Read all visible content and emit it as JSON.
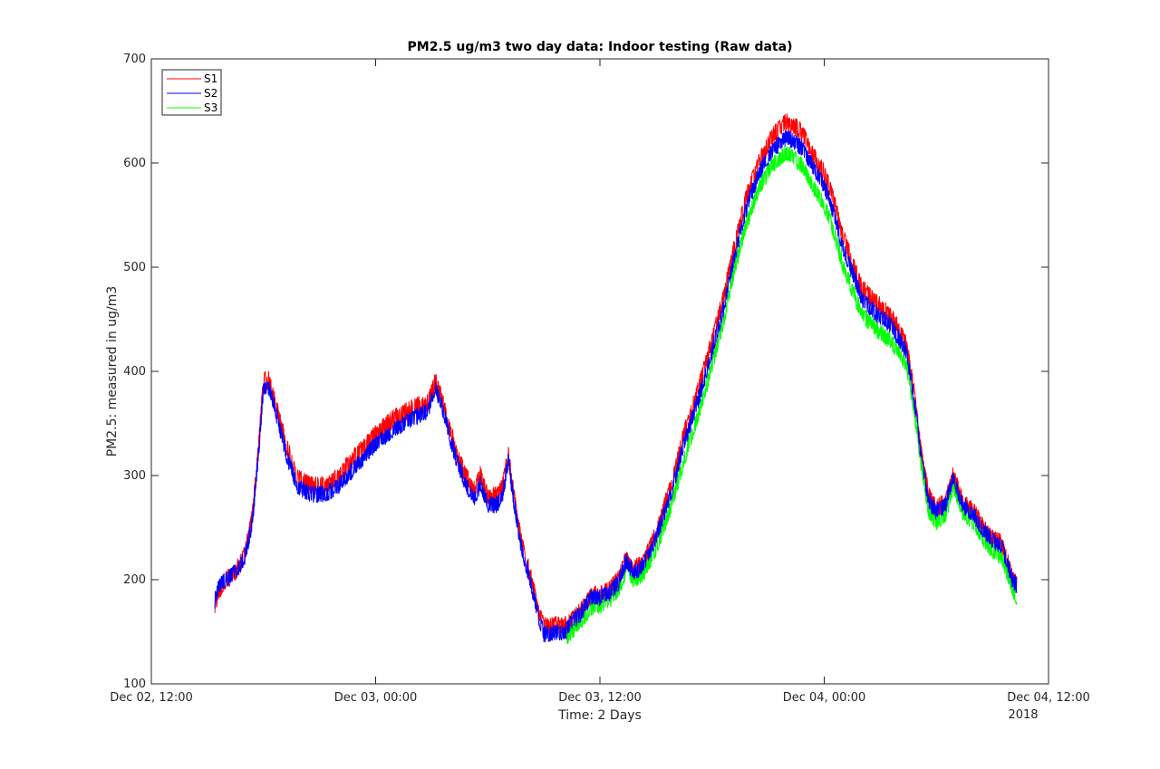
{
  "chart_data": {
    "type": "line",
    "title": "PM2.5 ug/m3 two day data: Indoor testing (Raw data)",
    "xlabel": "Time: 2 Days",
    "ylabel": "PM2.5: measured in ug/m3",
    "x_unit": "hours since Dec 02, 12:00",
    "xlim": [
      0,
      48
    ],
    "ylim": [
      100,
      700
    ],
    "x_ticks": [
      {
        "value": 0,
        "label": "Dec 02, 12:00"
      },
      {
        "value": 12,
        "label": "Dec 03, 00:00"
      },
      {
        "value": 24,
        "label": "Dec 03, 12:00"
      },
      {
        "value": 36,
        "label": "Dec 04, 00:00"
      },
      {
        "value": 48,
        "label": "Dec 04, 12:00"
      }
    ],
    "x_secondary_label": "2018",
    "y_ticks": [
      100,
      200,
      300,
      400,
      500,
      600,
      700
    ],
    "legend_position": "top-left",
    "series": [
      {
        "name": "S1",
        "color": "#ff0000",
        "noise": 9,
        "segments": [
          [
            [
              3.4,
              175
            ],
            [
              3.6,
              190
            ],
            [
              4.0,
              200
            ],
            [
              4.5,
              207
            ],
            [
              5.0,
              225
            ],
            [
              5.4,
              260
            ],
            [
              5.7,
              320
            ],
            [
              6.0,
              390
            ],
            [
              6.3,
              392
            ],
            [
              6.7,
              365
            ],
            [
              7.2,
              330
            ],
            [
              7.8,
              298
            ],
            [
              8.5,
              290
            ],
            [
              9.3,
              290
            ],
            [
              10.0,
              300
            ],
            [
              11.0,
              320
            ],
            [
              12.0,
              340
            ],
            [
              13.0,
              355
            ],
            [
              14.0,
              365
            ],
            [
              14.8,
              370
            ],
            [
              15.2,
              390
            ],
            [
              15.6,
              370
            ],
            [
              16.2,
              330
            ],
            [
              16.8,
              300
            ],
            [
              17.3,
              285
            ],
            [
              17.6,
              300
            ],
            [
              18.0,
              280
            ],
            [
              18.5,
              280
            ],
            [
              18.8,
              290
            ],
            [
              19.1,
              320
            ],
            [
              19.4,
              280
            ],
            [
              19.8,
              235
            ],
            [
              20.2,
              210
            ],
            [
              20.7,
              170
            ],
            [
              21.0,
              155
            ],
            [
              22.2,
              157
            ]
          ],
          [
            [
              22.2,
              155
            ],
            [
              23.0,
              170
            ],
            [
              23.5,
              185
            ],
            [
              24.0,
              185
            ],
            [
              24.5,
              190
            ],
            [
              25.0,
              200
            ],
            [
              25.4,
              220
            ],
            [
              25.8,
              210
            ],
            [
              26.3,
              215
            ],
            [
              27.0,
              245
            ],
            [
              27.8,
              290
            ],
            [
              28.5,
              340
            ],
            [
              29.3,
              385
            ],
            [
              30.0,
              430
            ],
            [
              30.6,
              470
            ],
            [
              31.2,
              520
            ],
            [
              31.8,
              565
            ],
            [
              32.5,
              600
            ],
            [
              33.2,
              625
            ],
            [
              34.0,
              640
            ],
            [
              34.8,
              630
            ],
            [
              35.5,
              605
            ],
            [
              36.0,
              590
            ],
            [
              36.5,
              565
            ],
            [
              37.0,
              530
            ],
            [
              37.5,
              505
            ],
            [
              38.0,
              480
            ],
            [
              38.8,
              465
            ],
            [
              39.5,
              455
            ],
            [
              40.0,
              440
            ],
            [
              40.4,
              425
            ],
            [
              40.8,
              380
            ],
            [
              41.2,
              320
            ],
            [
              41.6,
              280
            ],
            [
              42.0,
              268
            ],
            [
              42.5,
              275
            ],
            [
              42.9,
              300
            ],
            [
              43.4,
              275
            ],
            [
              44.0,
              265
            ],
            [
              44.5,
              250
            ],
            [
              45.0,
              240
            ],
            [
              45.5,
              235
            ],
            [
              46.0,
              205
            ],
            [
              46.3,
              195
            ]
          ]
        ]
      },
      {
        "name": "S2",
        "color": "#0000ff",
        "noise": 8,
        "segments": [
          [
            [
              3.4,
              180
            ],
            [
              3.6,
              195
            ],
            [
              4.0,
              200
            ],
            [
              4.5,
              207
            ],
            [
              5.0,
              222
            ],
            [
              5.4,
              255
            ],
            [
              5.7,
              315
            ],
            [
              6.0,
              383
            ],
            [
              6.3,
              385
            ],
            [
              6.7,
              358
            ],
            [
              7.2,
              322
            ],
            [
              7.8,
              290
            ],
            [
              8.5,
              282
            ],
            [
              9.3,
              282
            ],
            [
              10.0,
              290
            ],
            [
              11.0,
              310
            ],
            [
              12.0,
              330
            ],
            [
              13.0,
              345
            ],
            [
              14.0,
              355
            ],
            [
              14.8,
              362
            ],
            [
              15.2,
              385
            ],
            [
              15.6,
              362
            ],
            [
              16.2,
              322
            ],
            [
              16.8,
              292
            ],
            [
              17.3,
              278
            ],
            [
              17.6,
              292
            ],
            [
              18.0,
              272
            ],
            [
              18.5,
              272
            ],
            [
              18.8,
              282
            ],
            [
              19.1,
              315
            ],
            [
              19.4,
              275
            ],
            [
              19.8,
              230
            ],
            [
              20.2,
              205
            ],
            [
              20.7,
              165
            ],
            [
              21.0,
              148
            ],
            [
              22.2,
              150
            ]
          ],
          [
            [
              22.2,
              153
            ],
            [
              23.0,
              168
            ],
            [
              23.5,
              183
            ],
            [
              24.0,
              183
            ],
            [
              24.5,
              187
            ],
            [
              25.0,
              197
            ],
            [
              25.4,
              218
            ],
            [
              25.8,
              207
            ],
            [
              26.3,
              212
            ],
            [
              27.0,
              240
            ],
            [
              27.8,
              283
            ],
            [
              28.5,
              330
            ],
            [
              29.3,
              375
            ],
            [
              30.0,
              420
            ],
            [
              30.6,
              460
            ],
            [
              31.2,
              510
            ],
            [
              31.8,
              555
            ],
            [
              32.5,
              590
            ],
            [
              33.2,
              612
            ],
            [
              34.0,
              625
            ],
            [
              34.8,
              615
            ],
            [
              35.5,
              592
            ],
            [
              36.0,
              578
            ],
            [
              36.5,
              552
            ],
            [
              37.0,
              518
            ],
            [
              37.5,
              495
            ],
            [
              38.0,
              470
            ],
            [
              38.8,
              455
            ],
            [
              39.5,
              445
            ],
            [
              40.0,
              432
            ],
            [
              40.4,
              418
            ],
            [
              40.8,
              375
            ],
            [
              41.2,
              315
            ],
            [
              41.6,
              275
            ],
            [
              42.0,
              265
            ],
            [
              42.5,
              272
            ],
            [
              42.9,
              298
            ],
            [
              43.4,
              272
            ],
            [
              44.0,
              262
            ],
            [
              44.5,
              248
            ],
            [
              45.0,
              238
            ],
            [
              45.5,
              232
            ],
            [
              46.0,
              203
            ],
            [
              46.3,
              193
            ]
          ]
        ]
      },
      {
        "name": "S3",
        "color": "#00ff00",
        "noise": 8,
        "segments": [
          [
            [
              22.2,
              145
            ],
            [
              23.0,
              160
            ],
            [
              23.5,
              173
            ],
            [
              24.0,
              175
            ],
            [
              24.5,
              180
            ],
            [
              25.0,
              190
            ],
            [
              25.4,
              210
            ],
            [
              25.8,
              200
            ],
            [
              26.3,
              205
            ],
            [
              27.0,
              230
            ],
            [
              27.8,
              270
            ],
            [
              28.5,
              315
            ],
            [
              29.3,
              360
            ],
            [
              30.0,
              405
            ],
            [
              30.6,
              448
            ],
            [
              31.2,
              498
            ],
            [
              31.8,
              540
            ],
            [
              32.5,
              575
            ],
            [
              33.2,
              598
            ],
            [
              34.0,
              610
            ],
            [
              34.8,
              598
            ],
            [
              35.5,
              575
            ],
            [
              36.0,
              560
            ],
            [
              36.5,
              535
            ],
            [
              37.0,
              502
            ],
            [
              37.5,
              478
            ],
            [
              38.0,
              455
            ],
            [
              38.8,
              440
            ],
            [
              39.5,
              430
            ],
            [
              40.0,
              418
            ],
            [
              40.4,
              405
            ],
            [
              40.8,
              365
            ],
            [
              41.2,
              310
            ],
            [
              41.6,
              265
            ],
            [
              42.0,
              255
            ],
            [
              42.5,
              262
            ],
            [
              42.9,
              290
            ],
            [
              43.4,
              265
            ],
            [
              44.0,
              255
            ],
            [
              44.5,
              240
            ],
            [
              45.0,
              228
            ],
            [
              45.5,
              222
            ],
            [
              46.0,
              195
            ],
            [
              46.3,
              183
            ]
          ]
        ]
      }
    ]
  }
}
